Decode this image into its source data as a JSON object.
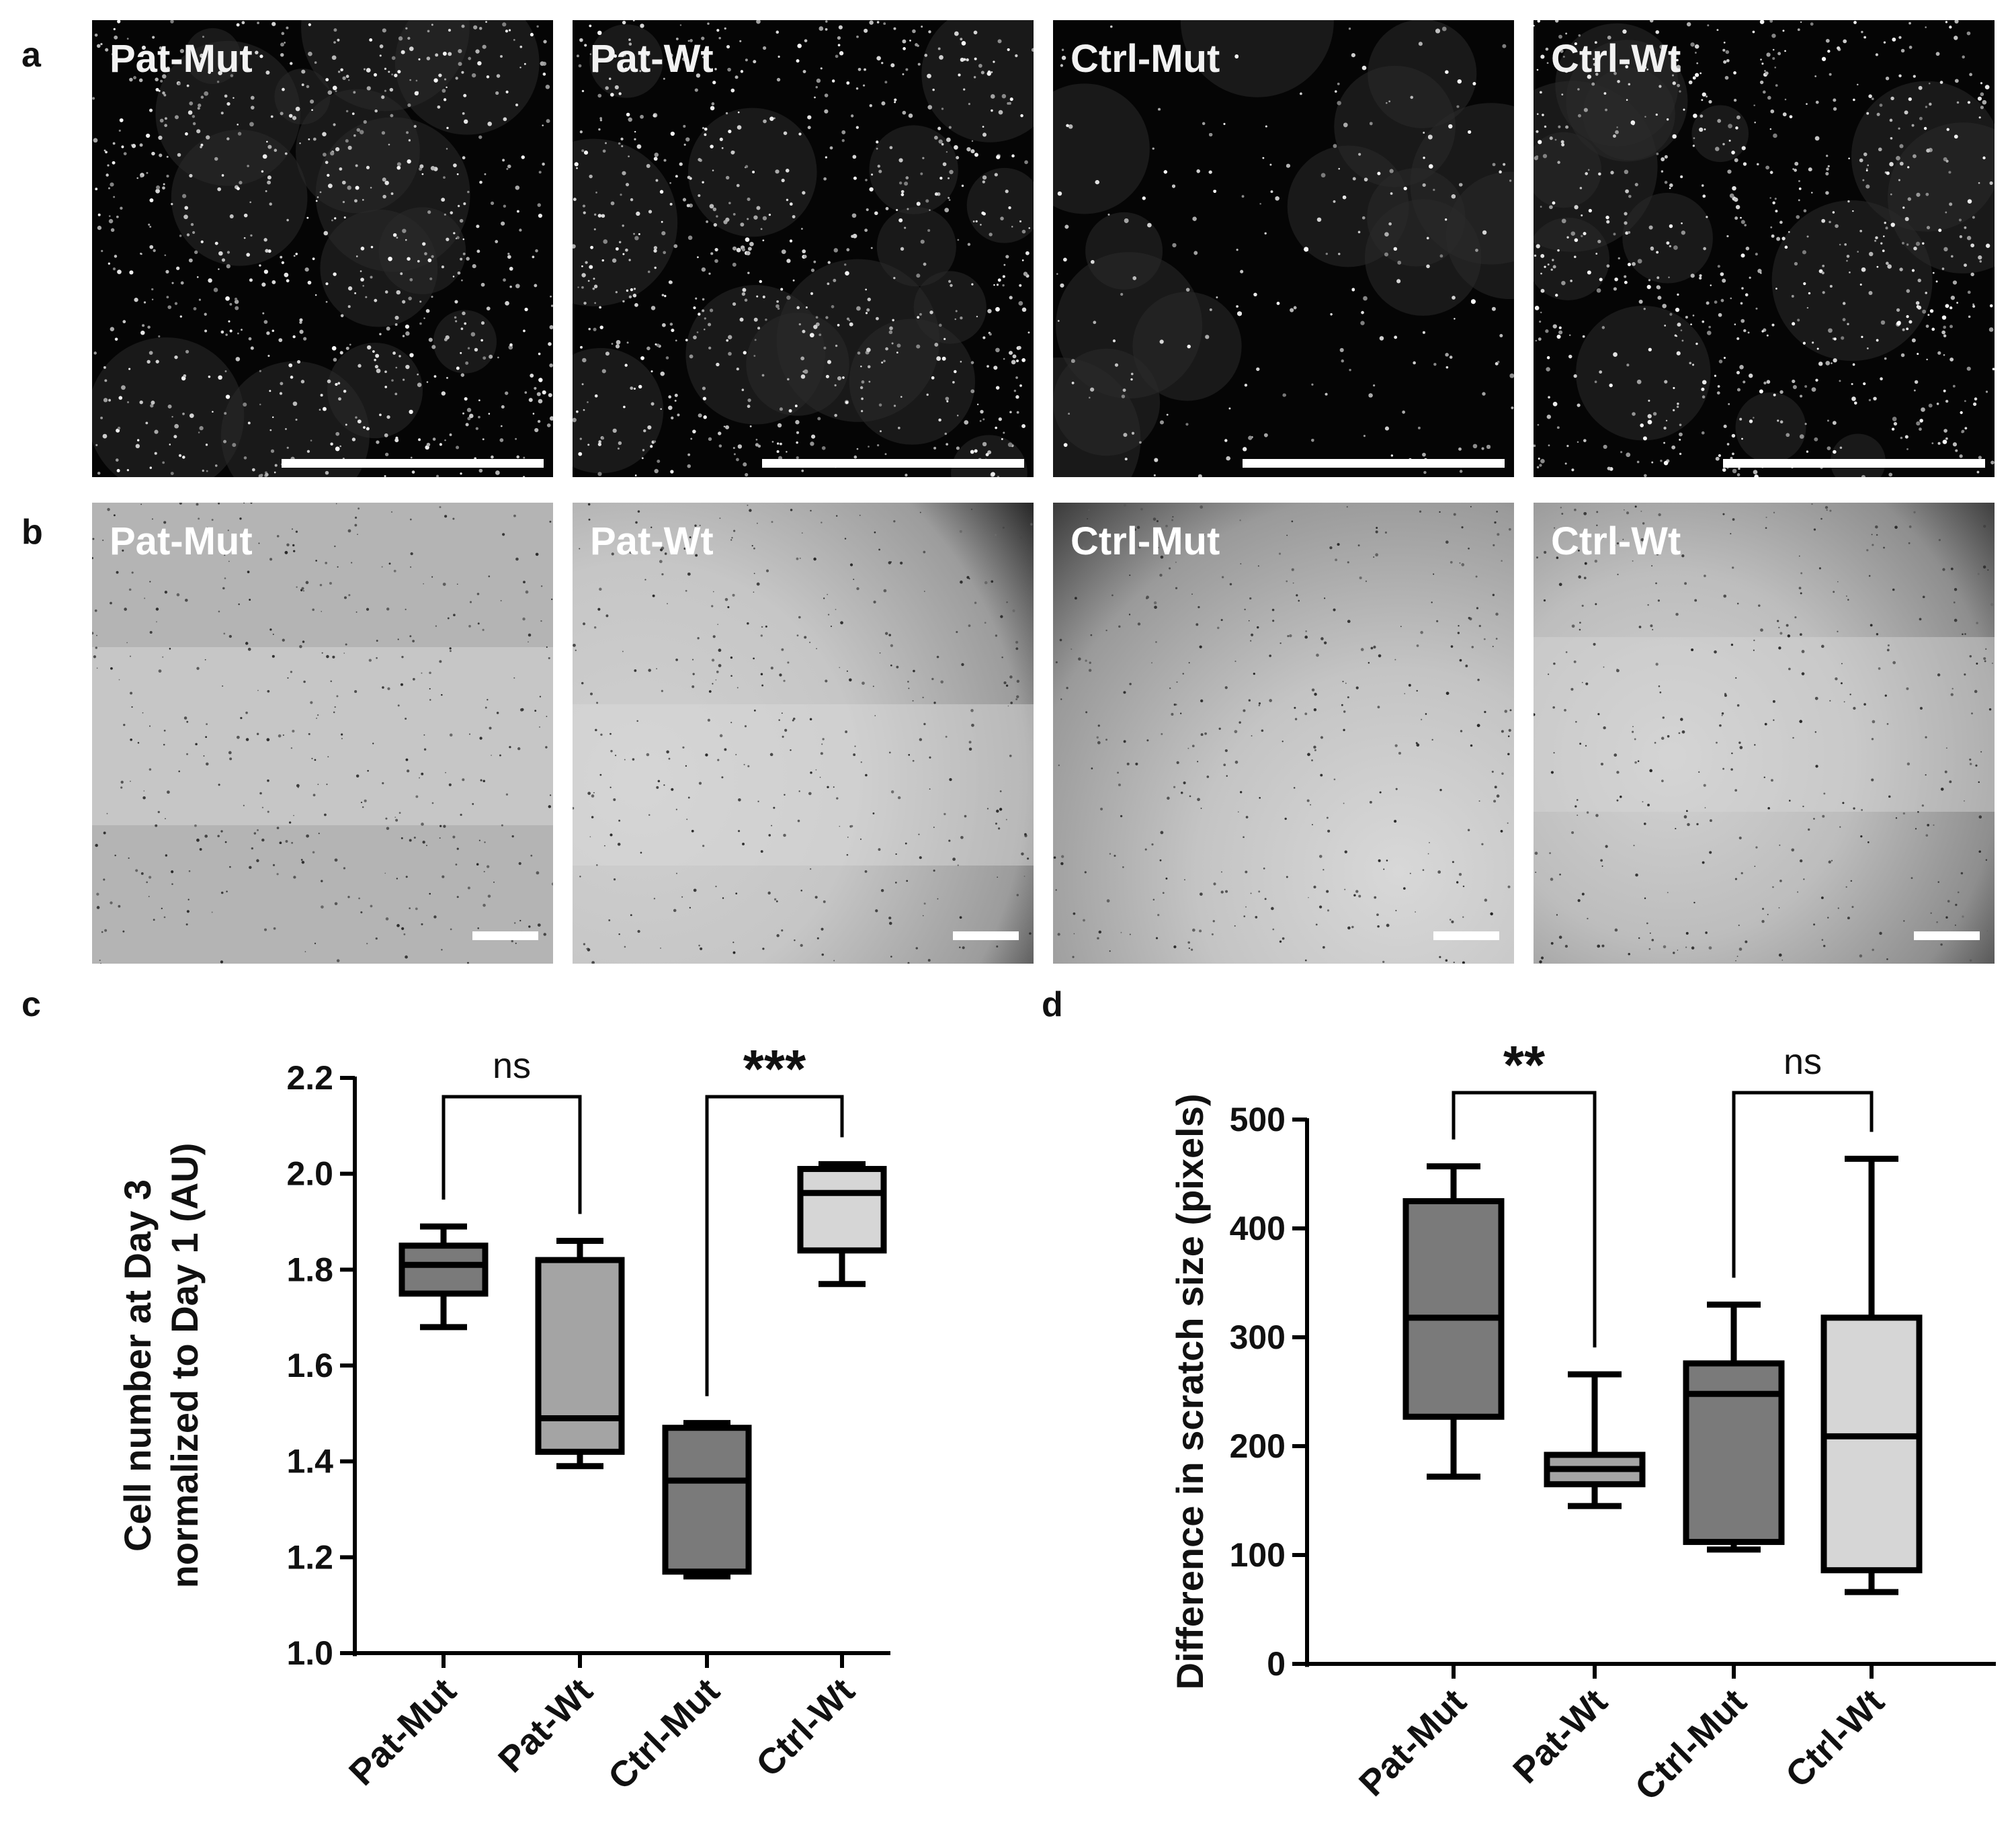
{
  "panels": {
    "a": {
      "letter": "a",
      "images": [
        {
          "label": "Pat-Mut",
          "type": "fluorescence"
        },
        {
          "label": "Pat-Wt",
          "type": "fluorescence"
        },
        {
          "label": "Ctrl-Mut",
          "type": "fluorescence"
        },
        {
          "label": "Ctrl-Wt",
          "type": "fluorescence"
        }
      ]
    },
    "b": {
      "letter": "b",
      "images": [
        {
          "label": "Pat-Mut",
          "type": "brightfield"
        },
        {
          "label": "Pat-Wt",
          "type": "brightfield"
        },
        {
          "label": "Ctrl-Mut",
          "type": "brightfield"
        },
        {
          "label": "Ctrl-Wt",
          "type": "brightfield"
        }
      ]
    },
    "c": {
      "letter": "c"
    },
    "d": {
      "letter": "d"
    }
  },
  "colors": {
    "dark_gray": "#7a7a7a",
    "mid_gray": "#a4a4a4",
    "light_gray": "#d6d6d6",
    "stroke": "#000000"
  },
  "chart_data": [
    {
      "type": "box",
      "panel": "c",
      "ylabel_line1": "Cell number at Day 3",
      "ylabel_line2": "normalized to Day 1 (AU)",
      "ylim": [
        1.0,
        2.2
      ],
      "yticks": [
        "1.0",
        "1.2",
        "1.4",
        "1.6",
        "1.8",
        "2.0",
        "2.2"
      ],
      "categories": [
        "Pat-Mut",
        "Pat-Wt",
        "Ctrl-Mut",
        "Ctrl-Wt"
      ],
      "series": [
        {
          "category": "Pat-Mut",
          "min": 1.68,
          "q1": 1.75,
          "median": 1.81,
          "q3": 1.85,
          "max": 1.89,
          "fill": "#7a7a7a"
        },
        {
          "category": "Pat-Wt",
          "min": 1.39,
          "q1": 1.42,
          "median": 1.49,
          "q3": 1.82,
          "max": 1.86,
          "fill": "#a4a4a4"
        },
        {
          "category": "Ctrl-Mut",
          "min": 1.16,
          "q1": 1.17,
          "median": 1.36,
          "q3": 1.47,
          "max": 1.48,
          "fill": "#7a7a7a"
        },
        {
          "category": "Ctrl-Wt",
          "min": 1.77,
          "q1": 1.84,
          "median": 1.96,
          "q3": 2.01,
          "max": 2.02,
          "fill": "#d6d6d6"
        }
      ],
      "comparisons": [
        {
          "from": 0,
          "to": 1,
          "label": "ns"
        },
        {
          "from": 2,
          "to": 3,
          "label": "***"
        }
      ]
    },
    {
      "type": "box",
      "panel": "d",
      "ylabel": "Difference in scratch size (pixels)",
      "ylim": [
        0,
        500
      ],
      "yticks": [
        "0",
        "100",
        "200",
        "300",
        "400",
        "500"
      ],
      "categories": [
        "Pat-Mut",
        "Pat-Wt",
        "Ctrl-Mut",
        "Ctrl-Wt"
      ],
      "series": [
        {
          "category": "Pat-Mut",
          "min": 172,
          "q1": 227,
          "median": 318,
          "q3": 425,
          "max": 457,
          "fill": "#7a7a7a"
        },
        {
          "category": "Pat-Wt",
          "min": 145,
          "q1": 165,
          "median": 179,
          "q3": 192,
          "max": 266,
          "fill": "#a4a4a4"
        },
        {
          "category": "Ctrl-Mut",
          "min": 105,
          "q1": 112,
          "median": 248,
          "q3": 276,
          "max": 330,
          "fill": "#7a7a7a"
        },
        {
          "category": "Ctrl-Wt",
          "min": 66,
          "q1": 86,
          "median": 209,
          "q3": 318,
          "max": 464,
          "fill": "#d6d6d6"
        }
      ],
      "comparisons": [
        {
          "from": 0,
          "to": 1,
          "label": "**"
        },
        {
          "from": 2,
          "to": 3,
          "label": "ns"
        }
      ]
    }
  ]
}
